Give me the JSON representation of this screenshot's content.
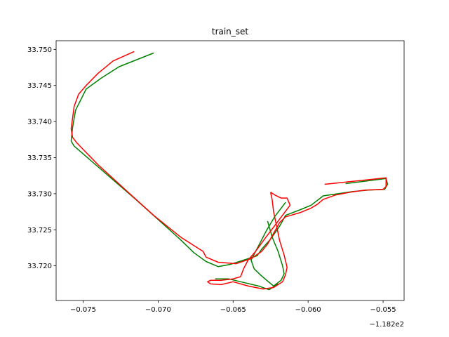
{
  "chart_data": {
    "type": "line",
    "title": "train_set",
    "xlabel": "",
    "ylabel": "",
    "x_offset_label": "−1.182e2",
    "x_offset": -118.2,
    "xlim": [
      -0.0768,
      -0.0536
    ],
    "ylim": [
      33.7152,
      33.7512
    ],
    "grid": false,
    "x_ticks": [
      {
        "value": -0.075,
        "label": "−0.075"
      },
      {
        "value": -0.07,
        "label": "−0.070"
      },
      {
        "value": -0.065,
        "label": "−0.065"
      },
      {
        "value": -0.06,
        "label": "−0.060"
      },
      {
        "value": -0.055,
        "label": "−0.055"
      }
    ],
    "y_ticks": [
      {
        "value": 33.72,
        "label": "33.720"
      },
      {
        "value": 33.725,
        "label": "33.725"
      },
      {
        "value": 33.73,
        "label": "33.730"
      },
      {
        "value": 33.735,
        "label": "33.735"
      },
      {
        "value": 33.74,
        "label": "33.740"
      },
      {
        "value": 33.745,
        "label": "33.745"
      },
      {
        "value": 33.75,
        "label": "33.750"
      }
    ],
    "series": [
      {
        "color": "#008000",
        "points": [
          [
            -0.0703,
            33.7495
          ],
          [
            -0.0726,
            33.7476
          ],
          [
            -0.0738,
            33.746
          ],
          [
            -0.0748,
            33.7445
          ],
          [
            -0.0755,
            33.7416
          ],
          [
            -0.0757,
            33.7392
          ],
          [
            -0.0758,
            33.7373
          ],
          [
            -0.0756,
            33.7366
          ],
          [
            -0.0736,
            33.733
          ],
          [
            -0.0716,
            33.7294
          ],
          [
            -0.0702,
            33.7268
          ],
          [
            -0.0686,
            33.7238
          ],
          [
            -0.0676,
            33.7218
          ],
          [
            -0.0668,
            33.7206
          ],
          [
            -0.066,
            33.7199
          ],
          [
            -0.0652,
            33.7202
          ],
          [
            -0.0634,
            33.7214
          ],
          [
            -0.0631,
            33.7223
          ],
          [
            -0.0625,
            33.7237
          ],
          [
            -0.0619,
            33.7255
          ],
          [
            -0.0615,
            33.727
          ],
          [
            -0.0605,
            33.7278
          ],
          [
            -0.0598,
            33.7284
          ],
          [
            -0.0593,
            33.7292
          ],
          [
            -0.059,
            33.7297
          ],
          [
            -0.058,
            33.73
          ],
          [
            -0.057,
            33.7303
          ],
          [
            -0.056,
            33.7305
          ],
          [
            -0.0549,
            33.7306
          ],
          [
            -0.0547,
            33.7313
          ],
          [
            -0.0548,
            33.7321
          ],
          [
            -0.0575,
            33.7314
          ]
        ]
      },
      {
        "color": "#008000",
        "points": [
          [
            -0.0615,
            33.7288
          ],
          [
            -0.0622,
            33.7269
          ],
          [
            -0.0628,
            33.7248
          ],
          [
            -0.0632,
            33.7232
          ],
          [
            -0.0638,
            33.7208
          ],
          [
            -0.0636,
            33.7196
          ],
          [
            -0.0631,
            33.7186
          ],
          [
            -0.0623,
            33.7172
          ],
          [
            -0.0618,
            33.718
          ],
          [
            -0.0616,
            33.7189
          ],
          [
            -0.0617,
            33.72
          ],
          [
            -0.062,
            33.722
          ],
          [
            -0.0624,
            33.724
          ],
          [
            -0.0627,
            33.7262
          ]
        ]
      },
      {
        "color": "#008000",
        "points": [
          [
            -0.0662,
            33.7182
          ],
          [
            -0.0653,
            33.7182
          ],
          [
            -0.0645,
            33.7178
          ],
          [
            -0.0633,
            33.7172
          ],
          [
            -0.0626,
            33.7167
          ],
          [
            -0.062,
            33.7175
          ]
        ]
      },
      {
        "color": "#ff0000",
        "points": [
          [
            -0.0716,
            33.7497
          ],
          [
            -0.073,
            33.7484
          ],
          [
            -0.074,
            33.7467
          ],
          [
            -0.0748,
            33.745
          ],
          [
            -0.0753,
            33.7438
          ],
          [
            -0.0756,
            33.7421
          ],
          [
            -0.0757,
            33.7405
          ],
          [
            -0.0758,
            33.739
          ],
          [
            -0.0757,
            33.7378
          ],
          [
            -0.0754,
            33.737
          ],
          [
            -0.074,
            33.734
          ],
          [
            -0.072,
            33.7302
          ],
          [
            -0.0703,
            33.727
          ],
          [
            -0.0685,
            33.724
          ],
          [
            -0.067,
            33.722
          ],
          [
            -0.0668,
            33.7212
          ],
          [
            -0.066,
            33.7205
          ],
          [
            -0.0648,
            33.7203
          ],
          [
            -0.0638,
            33.721
          ],
          [
            -0.0631,
            33.722
          ],
          [
            -0.0627,
            33.723
          ],
          [
            -0.0623,
            33.7245
          ],
          [
            -0.0619,
            33.726
          ],
          [
            -0.0615,
            33.7268
          ],
          [
            -0.0605,
            33.7274
          ],
          [
            -0.0598,
            33.728
          ],
          [
            -0.0594,
            33.7285
          ],
          [
            -0.059,
            33.7292
          ],
          [
            -0.0582,
            33.7298
          ],
          [
            -0.0572,
            33.7302
          ],
          [
            -0.0562,
            33.7305
          ],
          [
            -0.055,
            33.7306
          ],
          [
            -0.0548,
            33.731
          ],
          [
            -0.0548,
            33.7322
          ],
          [
            -0.0589,
            33.7313
          ]
        ]
      },
      {
        "color": "#ff0000",
        "points": [
          [
            -0.0625,
            33.7302
          ],
          [
            -0.0622,
            33.7298
          ],
          [
            -0.0618,
            33.7294
          ],
          [
            -0.0614,
            33.7294
          ],
          [
            -0.0612,
            33.7284
          ],
          [
            -0.062,
            33.7262
          ],
          [
            -0.0628,
            33.724
          ],
          [
            -0.0635,
            33.722
          ],
          [
            -0.064,
            33.7208
          ],
          [
            -0.0643,
            33.7196
          ],
          [
            -0.0645,
            33.7185
          ],
          [
            -0.065,
            33.7182
          ],
          [
            -0.0658,
            33.718
          ],
          [
            -0.0665,
            33.718
          ],
          [
            -0.0667,
            33.7178
          ],
          [
            -0.0665,
            33.7175
          ],
          [
            -0.0658,
            33.7174
          ],
          [
            -0.065,
            33.7178
          ],
          [
            -0.064,
            33.7172
          ],
          [
            -0.063,
            33.7168
          ],
          [
            -0.0623,
            33.717
          ],
          [
            -0.0617,
            33.7178
          ],
          [
            -0.0615,
            33.7188
          ],
          [
            -0.0614,
            33.7198
          ],
          [
            -0.0616,
            33.7215
          ],
          [
            -0.0619,
            33.7235
          ],
          [
            -0.0621,
            33.7255
          ],
          [
            -0.0623,
            33.7275
          ],
          [
            -0.0624,
            33.7292
          ],
          [
            -0.0625,
            33.7302
          ]
        ]
      }
    ]
  }
}
